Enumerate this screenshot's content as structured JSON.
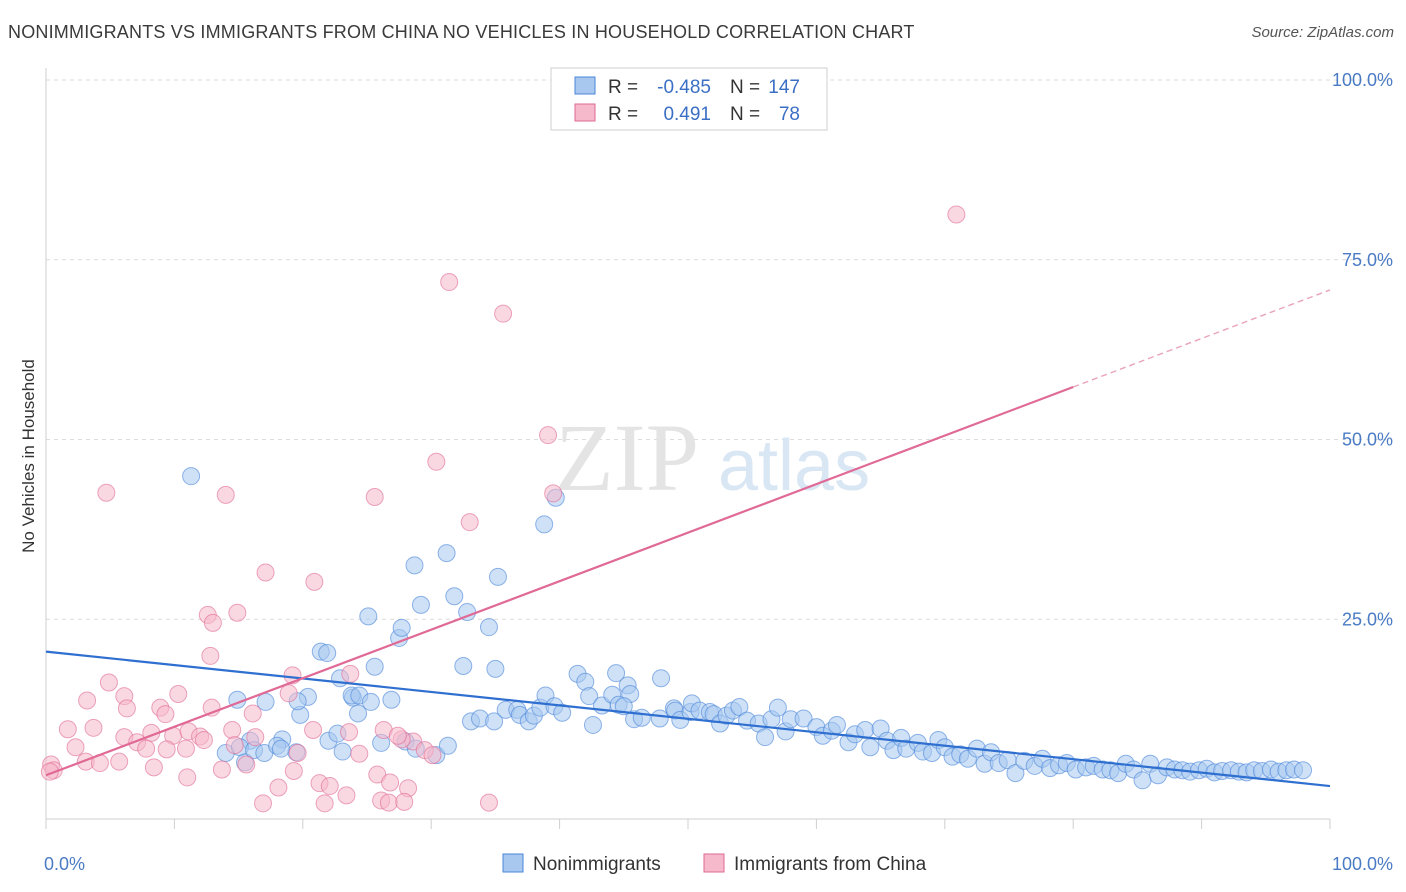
{
  "header": {
    "title": "NONIMMIGRANTS VS IMMIGRANTS FROM CHINA NO VEHICLES IN HOUSEHOLD CORRELATION CHART",
    "source": "Source: ZipAtlas.com"
  },
  "watermark": {
    "zip": "ZIP",
    "atlas": "atlas"
  },
  "legend_top": {
    "rows": [
      {
        "r_label": "R =",
        "r_value": "-0.485",
        "n_label": "N =",
        "n_value": "147",
        "color": "#a8c8f0"
      },
      {
        "r_label": "R =",
        "r_value": "0.491",
        "n_label": "N =",
        "n_value": "78",
        "color": "#f6b8cb"
      }
    ]
  },
  "legend_bottom": {
    "items": [
      {
        "label": "Nonimmigrants",
        "color": "#a8c8f0"
      },
      {
        "label": "Immigrants from China",
        "color": "#f6b8cb"
      }
    ]
  },
  "chart_data": {
    "type": "scatter",
    "xlabel": "",
    "ylabel": "No Vehicles in Household",
    "xlim": [
      0,
      100
    ],
    "ylim": [
      0,
      105
    ],
    "x_tick_labels": [
      {
        "value": 0,
        "label": "0.0%"
      },
      {
        "value": 100,
        "label": "100.0%"
      }
    ],
    "y_tick_labels": [
      {
        "value": 25,
        "label": "25.0%"
      },
      {
        "value": 50,
        "label": "50.0%"
      },
      {
        "value": 75,
        "label": "75.0%"
      },
      {
        "value": 100,
        "label": "100.0%"
      }
    ],
    "grid": true,
    "legend_position": "top-center",
    "series": [
      {
        "name": "Nonimmigrants",
        "color": "#4a86d8",
        "fill": "#a8c8f0",
        "trend": {
          "x": [
            0,
            100
          ],
          "y": [
            20.5,
            1.8
          ]
        },
        "points": [
          [
            11.3,
            44.9
          ],
          [
            38.8,
            38.2
          ],
          [
            39.7,
            41.9
          ],
          [
            28.7,
            32.5
          ],
          [
            29.2,
            27.0
          ],
          [
            31.2,
            34.2
          ],
          [
            31.8,
            28.2
          ],
          [
            32.8,
            26.0
          ],
          [
            34.5,
            23.9
          ],
          [
            35.2,
            30.9
          ],
          [
            27.5,
            22.4
          ],
          [
            27.7,
            23.8
          ],
          [
            25.1,
            25.4
          ],
          [
            32.5,
            18.5
          ],
          [
            35.0,
            18.1
          ],
          [
            19.5,
            6.5
          ],
          [
            19.8,
            11.7
          ],
          [
            20.4,
            14.2
          ],
          [
            21.4,
            20.5
          ],
          [
            21.9,
            20.3
          ],
          [
            22.9,
            16.8
          ],
          [
            23.9,
            14.1
          ],
          [
            24.3,
            11.9
          ],
          [
            25.6,
            18.4
          ],
          [
            26.9,
            13.8
          ],
          [
            14.9,
            13.8
          ],
          [
            17.1,
            13.5
          ],
          [
            19.6,
            13.6
          ],
          [
            23.8,
            14.4
          ],
          [
            24.4,
            14.4
          ],
          [
            25.3,
            13.5
          ],
          [
            15.9,
            8.1
          ],
          [
            18.4,
            8.3
          ],
          [
            14.0,
            6.4
          ],
          [
            15.1,
            7.2
          ],
          [
            15.5,
            5.1
          ],
          [
            16.2,
            6.8
          ],
          [
            17.0,
            6.4
          ],
          [
            18.0,
            7.4
          ],
          [
            18.3,
            7.0
          ],
          [
            22.0,
            8.1
          ],
          [
            22.7,
            9.1
          ],
          [
            23.1,
            6.6
          ],
          [
            26.1,
            7.8
          ],
          [
            28.0,
            8.0
          ],
          [
            28.8,
            7.0
          ],
          [
            30.4,
            6.1
          ],
          [
            31.3,
            7.4
          ],
          [
            33.1,
            10.8
          ],
          [
            33.8,
            11.2
          ],
          [
            34.9,
            10.8
          ],
          [
            35.8,
            12.4
          ],
          [
            36.7,
            12.4
          ],
          [
            36.9,
            11.7
          ],
          [
            37.6,
            10.8
          ],
          [
            38.0,
            11.6
          ],
          [
            38.5,
            12.7
          ],
          [
            38.9,
            14.4
          ],
          [
            39.6,
            12.9
          ],
          [
            40.2,
            12.0
          ],
          [
            41.4,
            17.4
          ],
          [
            42.0,
            16.3
          ],
          [
            42.3,
            14.3
          ],
          [
            42.6,
            10.3
          ],
          [
            43.3,
            13.0
          ],
          [
            44.1,
            14.5
          ],
          [
            44.6,
            13.1
          ],
          [
            44.4,
            17.5
          ],
          [
            45.3,
            15.8
          ],
          [
            45.5,
            14.6
          ],
          [
            45.8,
            11.1
          ],
          [
            45.0,
            12.9
          ],
          [
            46.4,
            11.3
          ],
          [
            47.8,
            11.2
          ],
          [
            47.9,
            16.8
          ],
          [
            48.9,
            12.6
          ],
          [
            49.0,
            12.3
          ],
          [
            49.4,
            11.0
          ],
          [
            50.2,
            12.1
          ],
          [
            50.3,
            13.3
          ],
          [
            50.9,
            12.3
          ],
          [
            51.7,
            12.1
          ],
          [
            52.0,
            11.8
          ],
          [
            52.5,
            10.5
          ],
          [
            53.0,
            11.6
          ],
          [
            53.5,
            12.3
          ],
          [
            54.0,
            12.8
          ],
          [
            54.6,
            10.9
          ],
          [
            55.5,
            10.5
          ],
          [
            56.0,
            8.6
          ],
          [
            56.5,
            11.1
          ],
          [
            57.0,
            12.7
          ],
          [
            57.6,
            9.4
          ],
          [
            58.0,
            11.1
          ],
          [
            59.0,
            11.2
          ],
          [
            60.0,
            10.0
          ],
          [
            60.5,
            8.8
          ],
          [
            61.2,
            9.5
          ],
          [
            61.6,
            10.3
          ],
          [
            62.5,
            7.9
          ],
          [
            63.0,
            9.0
          ],
          [
            63.8,
            9.6
          ],
          [
            64.2,
            7.2
          ],
          [
            65.0,
            9.8
          ],
          [
            65.5,
            8.1
          ],
          [
            66.0,
            6.8
          ],
          [
            66.6,
            8.5
          ],
          [
            67.0,
            7.0
          ],
          [
            67.9,
            7.8
          ],
          [
            68.3,
            6.6
          ],
          [
            69.0,
            6.4
          ],
          [
            69.5,
            8.2
          ],
          [
            70.0,
            7.2
          ],
          [
            70.6,
            5.9
          ],
          [
            71.2,
            6.2
          ],
          [
            71.8,
            5.6
          ],
          [
            72.5,
            7.0
          ],
          [
            73.1,
            4.9
          ],
          [
            73.6,
            6.5
          ],
          [
            74.2,
            5.0
          ],
          [
            74.9,
            5.4
          ],
          [
            75.5,
            3.6
          ],
          [
            76.2,
            5.3
          ],
          [
            77.0,
            4.6
          ],
          [
            77.6,
            5.6
          ],
          [
            78.2,
            4.3
          ],
          [
            78.9,
            4.7
          ],
          [
            79.5,
            5.0
          ],
          [
            80.2,
            4.1
          ],
          [
            81.0,
            4.4
          ],
          [
            81.6,
            4.6
          ],
          [
            82.3,
            4.1
          ],
          [
            82.9,
            4.0
          ],
          [
            83.5,
            3.6
          ],
          [
            84.1,
            4.9
          ],
          [
            84.7,
            4.1
          ],
          [
            85.4,
            2.6
          ],
          [
            86.0,
            4.9
          ],
          [
            86.6,
            3.3
          ],
          [
            87.3,
            4.4
          ],
          [
            87.9,
            4.1
          ],
          [
            88.5,
            4.0
          ],
          [
            89.1,
            3.8
          ],
          [
            89.8,
            4.0
          ],
          [
            90.4,
            4.2
          ],
          [
            91.0,
            3.7
          ],
          [
            91.6,
            3.9
          ],
          [
            92.3,
            4.0
          ],
          [
            92.9,
            3.8
          ],
          [
            93.5,
            3.7
          ],
          [
            94.1,
            4.0
          ],
          [
            94.7,
            3.9
          ],
          [
            95.4,
            4.1
          ],
          [
            96.0,
            3.8
          ],
          [
            96.6,
            4.0
          ],
          [
            97.2,
            4.1
          ],
          [
            97.9,
            4.0
          ]
        ]
      },
      {
        "name": "Immigrants from China",
        "color": "#e06a95",
        "fill": "#f6b8cb",
        "trend": {
          "x": [
            0,
            80
          ],
          "y": [
            3.3,
            57.3
          ]
        },
        "trend_extension": {
          "x": [
            80,
            100
          ],
          "y": [
            57.3,
            70.8
          ]
        },
        "points": [
          [
            70.9,
            81.3
          ],
          [
            31.4,
            71.9
          ],
          [
            35.6,
            67.5
          ],
          [
            39.1,
            50.6
          ],
          [
            30.4,
            46.9
          ],
          [
            33.0,
            38.5
          ],
          [
            39.5,
            42.5
          ],
          [
            14.0,
            42.3
          ],
          [
            25.6,
            42.0
          ],
          [
            4.7,
            42.6
          ],
          [
            17.1,
            31.5
          ],
          [
            20.9,
            30.2
          ],
          [
            12.6,
            25.6
          ],
          [
            13.0,
            24.5
          ],
          [
            14.9,
            25.9
          ],
          [
            12.8,
            19.9
          ],
          [
            19.2,
            17.2
          ],
          [
            23.7,
            17.4
          ],
          [
            4.9,
            16.2
          ],
          [
            6.1,
            14.3
          ],
          [
            10.3,
            14.6
          ],
          [
            18.9,
            14.7
          ],
          [
            3.2,
            13.7
          ],
          [
            6.3,
            12.6
          ],
          [
            8.9,
            12.7
          ],
          [
            9.3,
            11.8
          ],
          [
            12.9,
            12.7
          ],
          [
            16.1,
            11.9
          ],
          [
            20.8,
            9.6
          ],
          [
            23.6,
            9.3
          ],
          [
            26.3,
            9.6
          ],
          [
            28.6,
            8.0
          ],
          [
            27.7,
            8.3
          ],
          [
            27.4,
            8.8
          ],
          [
            1.7,
            9.7
          ],
          [
            3.7,
            9.9
          ],
          [
            6.1,
            8.6
          ],
          [
            7.1,
            7.9
          ],
          [
            8.2,
            9.2
          ],
          [
            9.9,
            8.8
          ],
          [
            11.1,
            9.4
          ],
          [
            12.0,
            8.7
          ],
          [
            14.5,
            9.6
          ],
          [
            16.3,
            8.6
          ],
          [
            7.8,
            7.0
          ],
          [
            9.4,
            6.9
          ],
          [
            10.9,
            7.0
          ],
          [
            12.3,
            8.2
          ],
          [
            14.7,
            7.5
          ],
          [
            19.6,
            6.4
          ],
          [
            24.4,
            6.3
          ],
          [
            29.5,
            6.8
          ],
          [
            30.1,
            6.1
          ],
          [
            2.3,
            7.2
          ],
          [
            3.1,
            5.2
          ],
          [
            4.2,
            5.0
          ],
          [
            5.7,
            5.2
          ],
          [
            8.4,
            4.4
          ],
          [
            11.0,
            3.0
          ],
          [
            13.7,
            4.1
          ],
          [
            15.6,
            4.8
          ],
          [
            19.3,
            3.9
          ],
          [
            21.3,
            2.2
          ],
          [
            22.1,
            1.8
          ],
          [
            25.8,
            3.4
          ],
          [
            26.8,
            2.3
          ],
          [
            28.2,
            1.5
          ],
          [
            18.1,
            1.6
          ],
          [
            21.7,
            -0.6
          ],
          [
            23.4,
            0.5
          ],
          [
            26.1,
            -0.2
          ],
          [
            26.7,
            -0.5
          ],
          [
            27.9,
            -0.4
          ],
          [
            16.9,
            -0.6
          ],
          [
            34.5,
            -0.5
          ],
          [
            0.4,
            4.8
          ],
          [
            0.6,
            4.0
          ],
          [
            0.3,
            3.8
          ]
        ]
      }
    ]
  }
}
